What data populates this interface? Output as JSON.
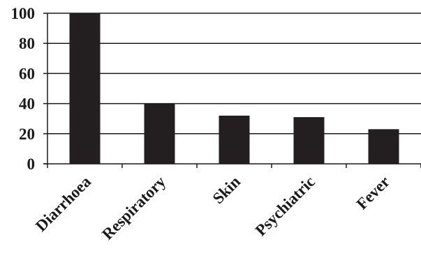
{
  "chart_data": {
    "type": "bar",
    "categories": [
      "Diarrhoea",
      "Respiratory",
      "Skin",
      "Psychiatric",
      "Fever"
    ],
    "values": [
      100,
      40,
      32,
      31,
      23
    ],
    "title": "",
    "xlabel": "",
    "ylabel": "",
    "ylim": [
      0,
      100
    ],
    "yticks": [
      0,
      20,
      40,
      60,
      80,
      100
    ],
    "grid": true,
    "bar_color": "#231f20"
  }
}
